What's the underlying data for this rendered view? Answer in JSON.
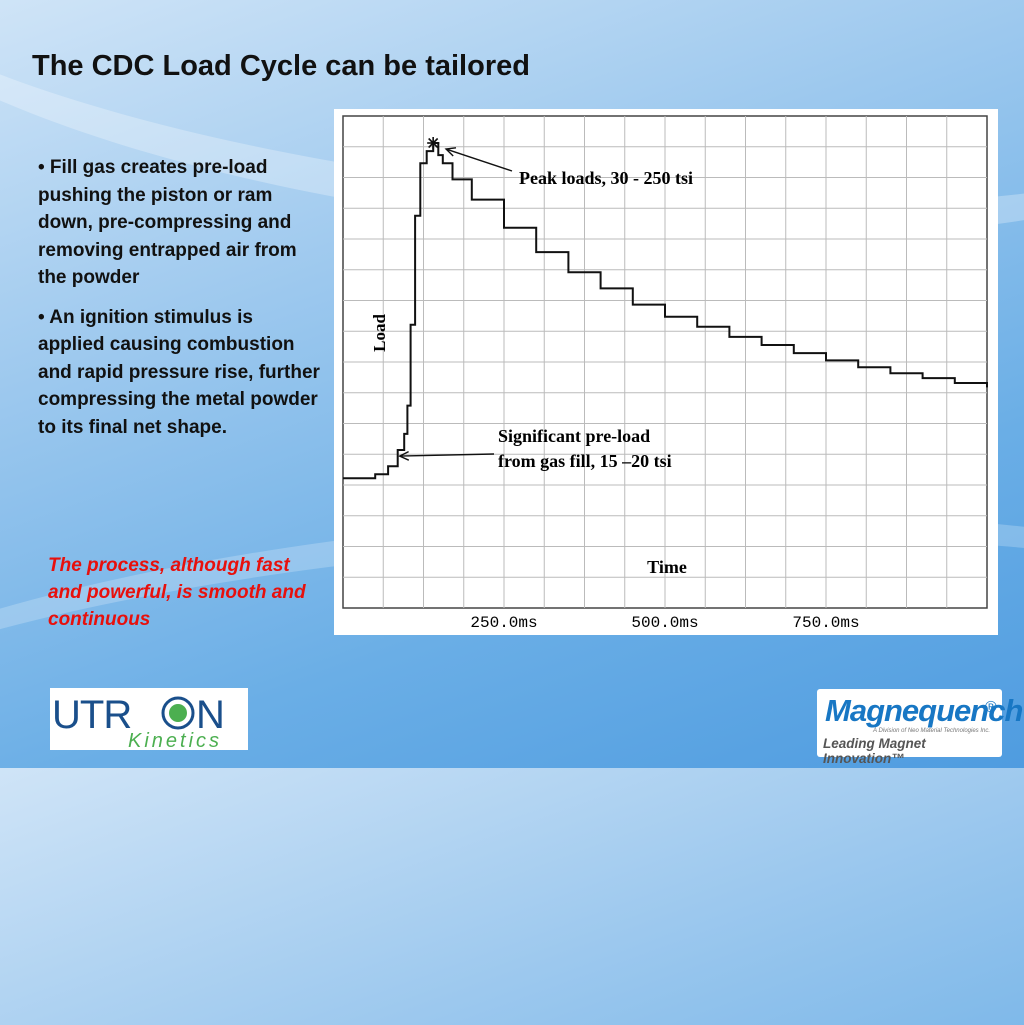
{
  "slide": {
    "title": "The CDC Load Cycle can be tailored",
    "bullets": [
      "• Fill gas creates pre-load pushing the piston or ram down, pre-compressing and removing entrapped air from the powder",
      "• An ignition stimulus is applied causing combustion and rapid pressure rise, further compressing the metal powder to its final net shape."
    ],
    "note": "The process, although fast and powerful, is smooth and continuous"
  },
  "logos": {
    "utron": {
      "word": "UTR",
      "word_end": "N",
      "sub": "Kinetics"
    },
    "magnequench": {
      "word": "Magnequench",
      "mark": "®",
      "division": "A Division of Neo Material Technologies Inc.",
      "tagline": "Leading Magnet Innovation™"
    }
  },
  "colors": {
    "accent_red": "#e8100c",
    "utron_green": "#4caf50",
    "utron_blue": "#1a4f8b",
    "magnequench_blue": "#1877c4"
  },
  "chart_data": {
    "type": "line",
    "xlabel": "Time",
    "ylabel": "Load",
    "x_unit": "ms",
    "xlim": [
      0,
      1000
    ],
    "x_ticks": [
      {
        "value": 250,
        "label": "250.0ms"
      },
      {
        "value": 500,
        "label": "500.0ms"
      },
      {
        "value": 750,
        "label": "750.0ms"
      }
    ],
    "grid": true,
    "grid_x_divisions": 16,
    "grid_y_divisions": 16,
    "ylim": [
      0,
      1
    ],
    "series": [
      {
        "x": [
          0,
          30,
          50,
          70,
          85,
          95,
          100,
          105,
          112,
          120,
          130,
          140,
          148,
          155,
          170,
          200,
          250,
          300,
          350,
          400,
          450,
          500,
          550,
          600,
          650,
          700,
          750,
          800,
          850,
          900,
          950,
          1000
        ],
        "y": [
          0.17,
          0.17,
          0.18,
          0.2,
          0.24,
          0.28,
          0.35,
          0.55,
          0.82,
          0.95,
          0.98,
          1.0,
          0.97,
          0.95,
          0.91,
          0.86,
          0.79,
          0.73,
          0.68,
          0.64,
          0.6,
          0.57,
          0.545,
          0.52,
          0.5,
          0.48,
          0.462,
          0.445,
          0.43,
          0.418,
          0.406,
          0.395
        ]
      }
    ],
    "peak_marker": {
      "x": 140,
      "y": 1.0
    },
    "annotations": [
      {
        "text": "Peak loads, 30 - 250 tsi",
        "arrow_to": {
          "x": 160,
          "y": 0.985
        }
      },
      {
        "text": "Significant pre-load",
        "text2": "from gas fill, 15 –20 tsi",
        "arrow_to": {
          "x": 88,
          "y": 0.225
        }
      }
    ]
  }
}
